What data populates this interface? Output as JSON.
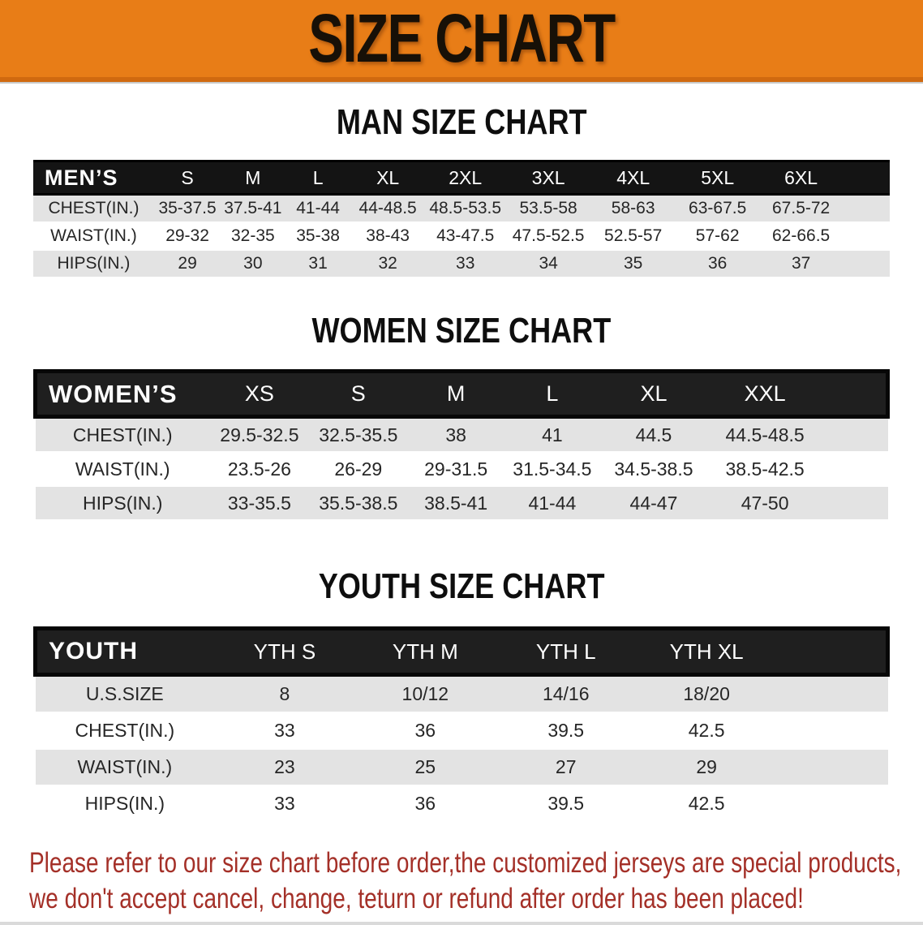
{
  "banner": {
    "title": "SIZE CHART"
  },
  "sections": [
    {
      "title": "MAN SIZE CHART",
      "header_label": "MEN’S",
      "columns": [
        "S",
        "M",
        "L",
        "XL",
        "2XL",
        "3XL",
        "4XL",
        "5XL",
        "6XL"
      ],
      "rows": [
        {
          "label": "CHEST(IN.)",
          "values": [
            "35-37.5",
            "37.5-41",
            "41-44",
            "44-48.5",
            "48.5-53.5",
            "53.5-58",
            "58-63",
            "63-67.5",
            "67.5-72"
          ]
        },
        {
          "label": "WAIST(IN.)",
          "values": [
            "29-32",
            "32-35",
            "35-38",
            "38-43",
            "43-47.5",
            "47.5-52.5",
            "52.5-57",
            "57-62",
            "62-66.5"
          ]
        },
        {
          "label": "HIPS(IN.)",
          "values": [
            "29",
            "30",
            "31",
            "32",
            "33",
            "34",
            "35",
            "36",
            "37"
          ]
        }
      ]
    },
    {
      "title": "WOMEN SIZE CHART",
      "header_label": "WOMEN’S",
      "columns": [
        "XS",
        "S",
        "M",
        "L",
        "XL",
        "XXL"
      ],
      "rows": [
        {
          "label": "CHEST(IN.)",
          "values": [
            "29.5-32.5",
            "32.5-35.5",
            "38",
            "41",
            "44.5",
            "44.5-48.5"
          ]
        },
        {
          "label": "WAIST(IN.)",
          "values": [
            "23.5-26",
            "26-29",
            "29-31.5",
            "31.5-34.5",
            "34.5-38.5",
            "38.5-42.5"
          ]
        },
        {
          "label": "HIPS(IN.)",
          "values": [
            "33-35.5",
            "35.5-38.5",
            "38.5-41",
            "41-44",
            "44-47",
            "47-50"
          ]
        }
      ]
    },
    {
      "title": "YOUTH SIZE CHART",
      "header_label": "YOUTH",
      "columns": [
        "YTH S",
        "YTH M",
        "YTH L",
        "YTH XL"
      ],
      "rows": [
        {
          "label": "U.S.SIZE",
          "values": [
            "8",
            "10/12",
            "14/16",
            "18/20"
          ]
        },
        {
          "label": "CHEST(IN.)",
          "values": [
            "33",
            "36",
            "39.5",
            "42.5"
          ]
        },
        {
          "label": "WAIST(IN.)",
          "values": [
            "23",
            "25",
            "27",
            "29"
          ]
        },
        {
          "label": "HIPS(IN.)",
          "values": [
            "33",
            "36",
            "39.5",
            "42.5"
          ]
        }
      ]
    }
  ],
  "footer": {
    "line1": "Please refer to our size chart before order,the customized jerseys are special products,",
    "line2": "we don't accept cancel, change, teturn or refund after order has been placed!"
  },
  "colors": {
    "banner_bg": "#e87d17",
    "table_header_bg": "#1a1a1a",
    "row_stripe": "#e3e3e3",
    "footer_text": "#a43028"
  }
}
